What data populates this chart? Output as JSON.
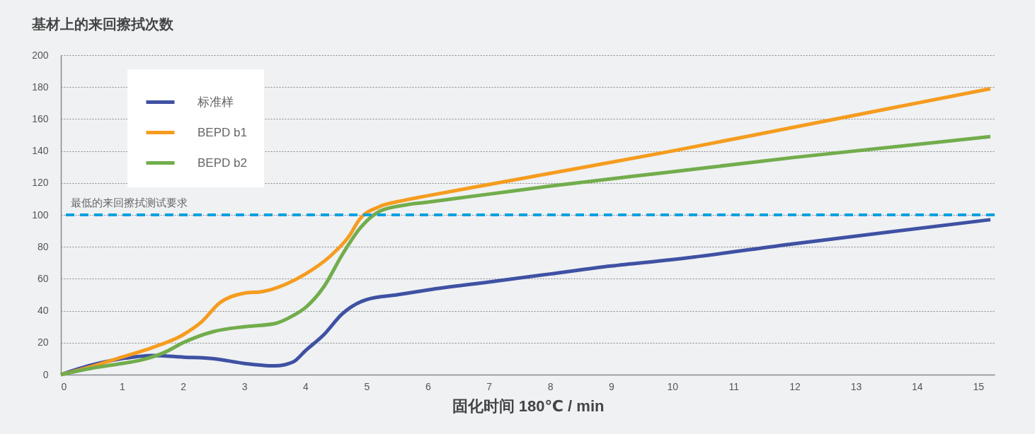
{
  "chart_data": {
    "type": "line",
    "title": "基材上的来回擦拭次数",
    "xlabel": "固化时间 180℃ / min",
    "xlim": [
      0,
      15.27
    ],
    "xticks": [
      0,
      1,
      2,
      3,
      4,
      5,
      6,
      7,
      8,
      9,
      10,
      11,
      12,
      13,
      14,
      15
    ],
    "ylim": [
      0,
      200
    ],
    "yticks": [
      0,
      20,
      40,
      60,
      80,
      100,
      120,
      140,
      160,
      180,
      200
    ],
    "grid": "y",
    "legend": "top left",
    "line_style": "solid",
    "marker": "none",
    "series": [
      {
        "name": "标准样",
        "color": "#3f51a3",
        "x": [
          0,
          0.5,
          1,
          1.5,
          2,
          2.5,
          3,
          3.5,
          3.8,
          4,
          4.3,
          4.6,
          5,
          5.5,
          6,
          7,
          8,
          9,
          10,
          12,
          15.2
        ],
        "values": [
          0,
          6,
          10,
          12,
          11,
          10,
          7,
          5.5,
          8,
          15,
          25,
          38,
          47,
          50,
          53,
          58,
          63,
          68,
          72,
          82,
          97
        ]
      },
      {
        "name": "BEPD b1",
        "color": "#f59c1f",
        "x": [
          0,
          0.5,
          1,
          1.5,
          2,
          2.3,
          2.6,
          3,
          3.3,
          3.7,
          4,
          4.4,
          4.7,
          4.9,
          5.2,
          5.6,
          6,
          7,
          8,
          10,
          12,
          15.2
        ],
        "values": [
          0,
          5,
          11,
          17,
          25,
          33,
          45,
          51,
          52,
          57,
          63,
          74,
          86,
          98,
          105,
          109,
          112,
          119,
          126,
          140,
          155,
          179
        ]
      },
      {
        "name": "BEPD b2",
        "color": "#72ad4c",
        "x": [
          0,
          0.5,
          1,
          1.3,
          1.7,
          2,
          2.5,
          3,
          3.5,
          3.8,
          4,
          4.3,
          4.6,
          4.9,
          5.2,
          5.6,
          6,
          7,
          8,
          10,
          12,
          15.2
        ],
        "values": [
          0,
          4,
          7,
          9,
          14,
          20,
          27,
          30,
          32,
          37,
          42,
          55,
          75,
          92,
          102,
          106,
          108,
          113,
          118,
          127,
          136,
          149
        ]
      }
    ],
    "ref_lines": [
      {
        "axis": "y",
        "value": 100,
        "label": "最低的来回擦拭测试要求",
        "color": "#00a0e0",
        "line_style": "dashed"
      }
    ]
  }
}
